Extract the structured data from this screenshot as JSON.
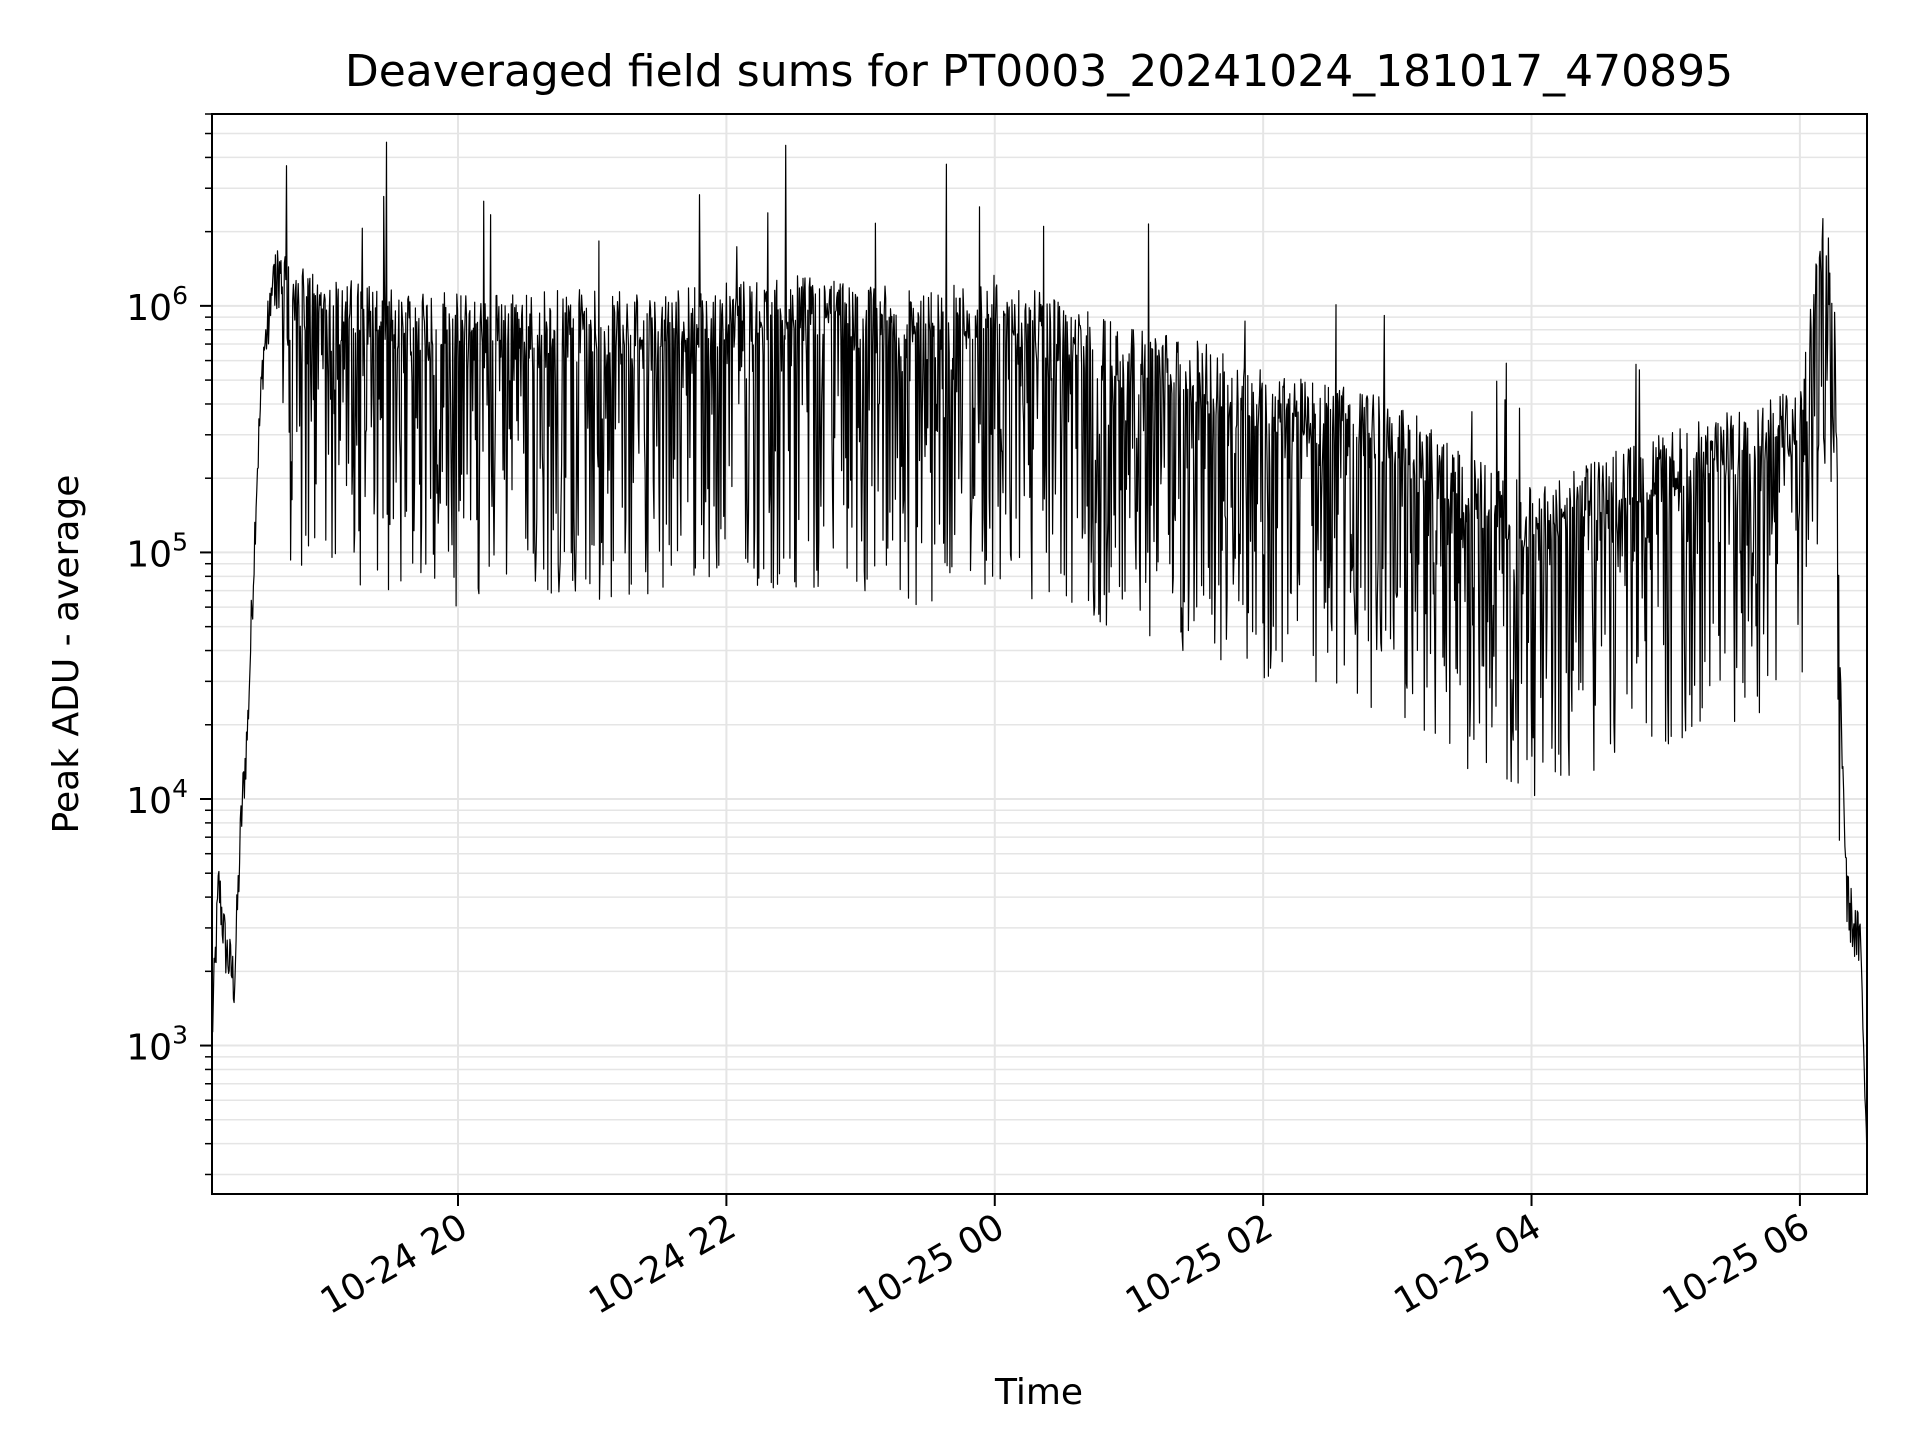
{
  "chart_data": {
    "type": "line",
    "title": "Deaveraged field sums for PT0003_20241024_181017_470895",
    "xlabel": "Time",
    "ylabel": "Peak ADU - average",
    "yscale": "log",
    "xlim": [
      "2024-10-24 18:10",
      "2024-10-25 06:30"
    ],
    "ylim": [
      250,
      6000000
    ],
    "grid": true,
    "x_ticks": [
      "10-24 20",
      "10-24 22",
      "10-25 00",
      "10-25 02",
      "10-25 04",
      "10-25 06"
    ],
    "y_ticks": [
      {
        "base": "10",
        "exp": "3",
        "value": 1000
      },
      {
        "base": "10",
        "exp": "4",
        "value": 10000
      },
      {
        "base": "10",
        "exp": "5",
        "value": 100000
      },
      {
        "base": "10",
        "exp": "6",
        "value": 1000000
      }
    ],
    "line_color": "#000000",
    "grid_color": "#e5e5e5",
    "series": [
      {
        "values_note": "approximate envelope read from the plot",
        "x": [
          "2024-10-24 18:10",
          "2024-10-24 18:13",
          "2024-10-24 18:16",
          "2024-10-24 18:20",
          "2024-10-24 18:23",
          "2024-10-24 18:26",
          "2024-10-24 18:30",
          "2024-10-24 18:33",
          "2024-10-24 18:36",
          "2024-10-24 18:40",
          "2024-10-24 18:45",
          "2024-10-24 18:50",
          "2024-10-24 19:00",
          "2024-10-24 19:30",
          "2024-10-24 20:00",
          "2024-10-24 20:30",
          "2024-10-24 21:00",
          "2024-10-24 21:30",
          "2024-10-24 22:00",
          "2024-10-24 22:30",
          "2024-10-24 23:00",
          "2024-10-24 23:30",
          "2024-10-25 00:00",
          "2024-10-25 00:30",
          "2024-10-25 01:00",
          "2024-10-25 01:30",
          "2024-10-25 02:00",
          "2024-10-25 02:30",
          "2024-10-25 03:00",
          "2024-10-25 03:30",
          "2024-10-25 04:00",
          "2024-10-25 04:30",
          "2024-10-25 05:00",
          "2024-10-25 05:30",
          "2024-10-25 06:00",
          "2024-10-25 06:05",
          "2024-10-25 06:10",
          "2024-10-25 06:15",
          "2024-10-25 06:18",
          "2024-10-25 06:21",
          "2024-10-25 06:24",
          "2024-10-25 06:27",
          "2024-10-25 06:30"
        ],
        "values": [
          1100,
          4500,
          2500,
          1800,
          8000,
          20000,
          200000,
          650000,
          900000,
          1000000,
          900000,
          800000,
          700000,
          650000,
          600000,
          600000,
          620000,
          600000,
          650000,
          700000,
          650000,
          600000,
          700000,
          550000,
          450000,
          380000,
          300000,
          260000,
          220000,
          130000,
          100000,
          130000,
          160000,
          200000,
          250000,
          700000,
          1500000,
          900000,
          30000,
          4000,
          3000,
          2500,
          400
        ]
      }
    ]
  }
}
